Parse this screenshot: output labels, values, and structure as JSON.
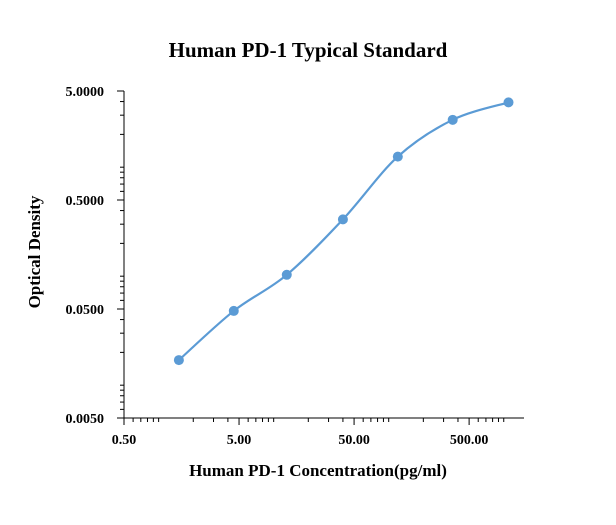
{
  "chart_data": {
    "type": "scatter",
    "title": "Human PD-1 Typical Standard",
    "xlabel": "Human PD-1 Concentration(pg/ml)",
    "ylabel": "Optical Density",
    "x_scale": "log",
    "y_scale": "log",
    "xlim": [
      0.5,
      1500
    ],
    "ylim": [
      0.005,
      5
    ],
    "x_ticks": [
      {
        "value": 0.5,
        "label": "0.50"
      },
      {
        "value": 5,
        "label": "5.00"
      },
      {
        "value": 50,
        "label": "50.00"
      },
      {
        "value": 500,
        "label": "500.00"
      }
    ],
    "y_ticks": [
      {
        "value": 0.005,
        "label": "0.0050"
      },
      {
        "value": 0.05,
        "label": "0.0500"
      },
      {
        "value": 0.5,
        "label": "0.5000"
      },
      {
        "value": 5,
        "label": "5.0000"
      }
    ],
    "grid": false,
    "legend": "none",
    "series": [
      {
        "color": "#5b9bd5",
        "marker": "circle",
        "smooth_line": true,
        "x": [
          1.5,
          4.5,
          13,
          40,
          120,
          360,
          1100
        ],
        "y": [
          0.017,
          0.048,
          0.103,
          0.332,
          1.25,
          2.72,
          3.93
        ]
      }
    ]
  }
}
